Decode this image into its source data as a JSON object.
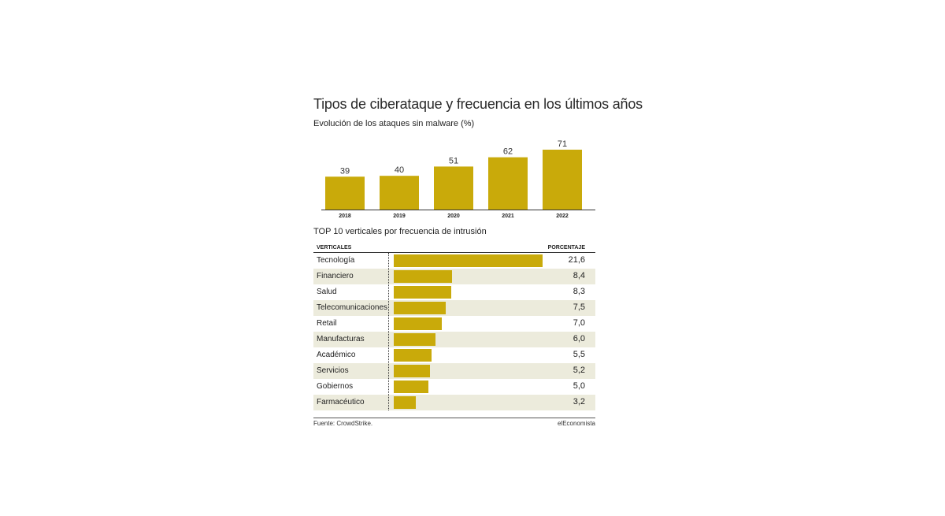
{
  "title": "Tipos de ciberataque y frecuencia en los últimos años",
  "colors": {
    "bar": "#c9aa0a",
    "stripe": "#ecebdc",
    "text": "#222222"
  },
  "chart_data": [
    {
      "type": "bar",
      "title": "Evolución de los ataques sin malware (%)",
      "categories": [
        "2018",
        "2019",
        "2020",
        "2021",
        "2022"
      ],
      "values": [
        39,
        40,
        51,
        62,
        71
      ],
      "value_labels": [
        "39",
        "40",
        "51",
        "62",
        "71"
      ],
      "xlabel": "",
      "ylabel": "",
      "ylim": [
        0,
        71
      ]
    },
    {
      "type": "bar",
      "orientation": "horizontal",
      "title": "TOP 10 verticales por frecuencia de intrusión",
      "column_headers": [
        "VERTICALES",
        "PORCENTAJE"
      ],
      "categories": [
        "Tecnología",
        "Financiero",
        "Salud",
        "Telecomunicaciones",
        "Retail",
        "Manufacturas",
        "Académico",
        "Servicios",
        "Gobiernos",
        "Farmacéutico"
      ],
      "values": [
        21.6,
        8.4,
        8.3,
        7.5,
        7.0,
        6.0,
        5.5,
        5.2,
        5.0,
        3.2
      ],
      "value_labels": [
        "21,6",
        "8,4",
        "8,3",
        "7,5",
        "7,0",
        "6,0",
        "5,5",
        "5,2",
        "5,0",
        "3,2"
      ],
      "xlim": [
        0,
        21.6
      ]
    }
  ],
  "footer": {
    "source": "Fuente: CrowdStrike.",
    "brand": "elEconomista"
  }
}
